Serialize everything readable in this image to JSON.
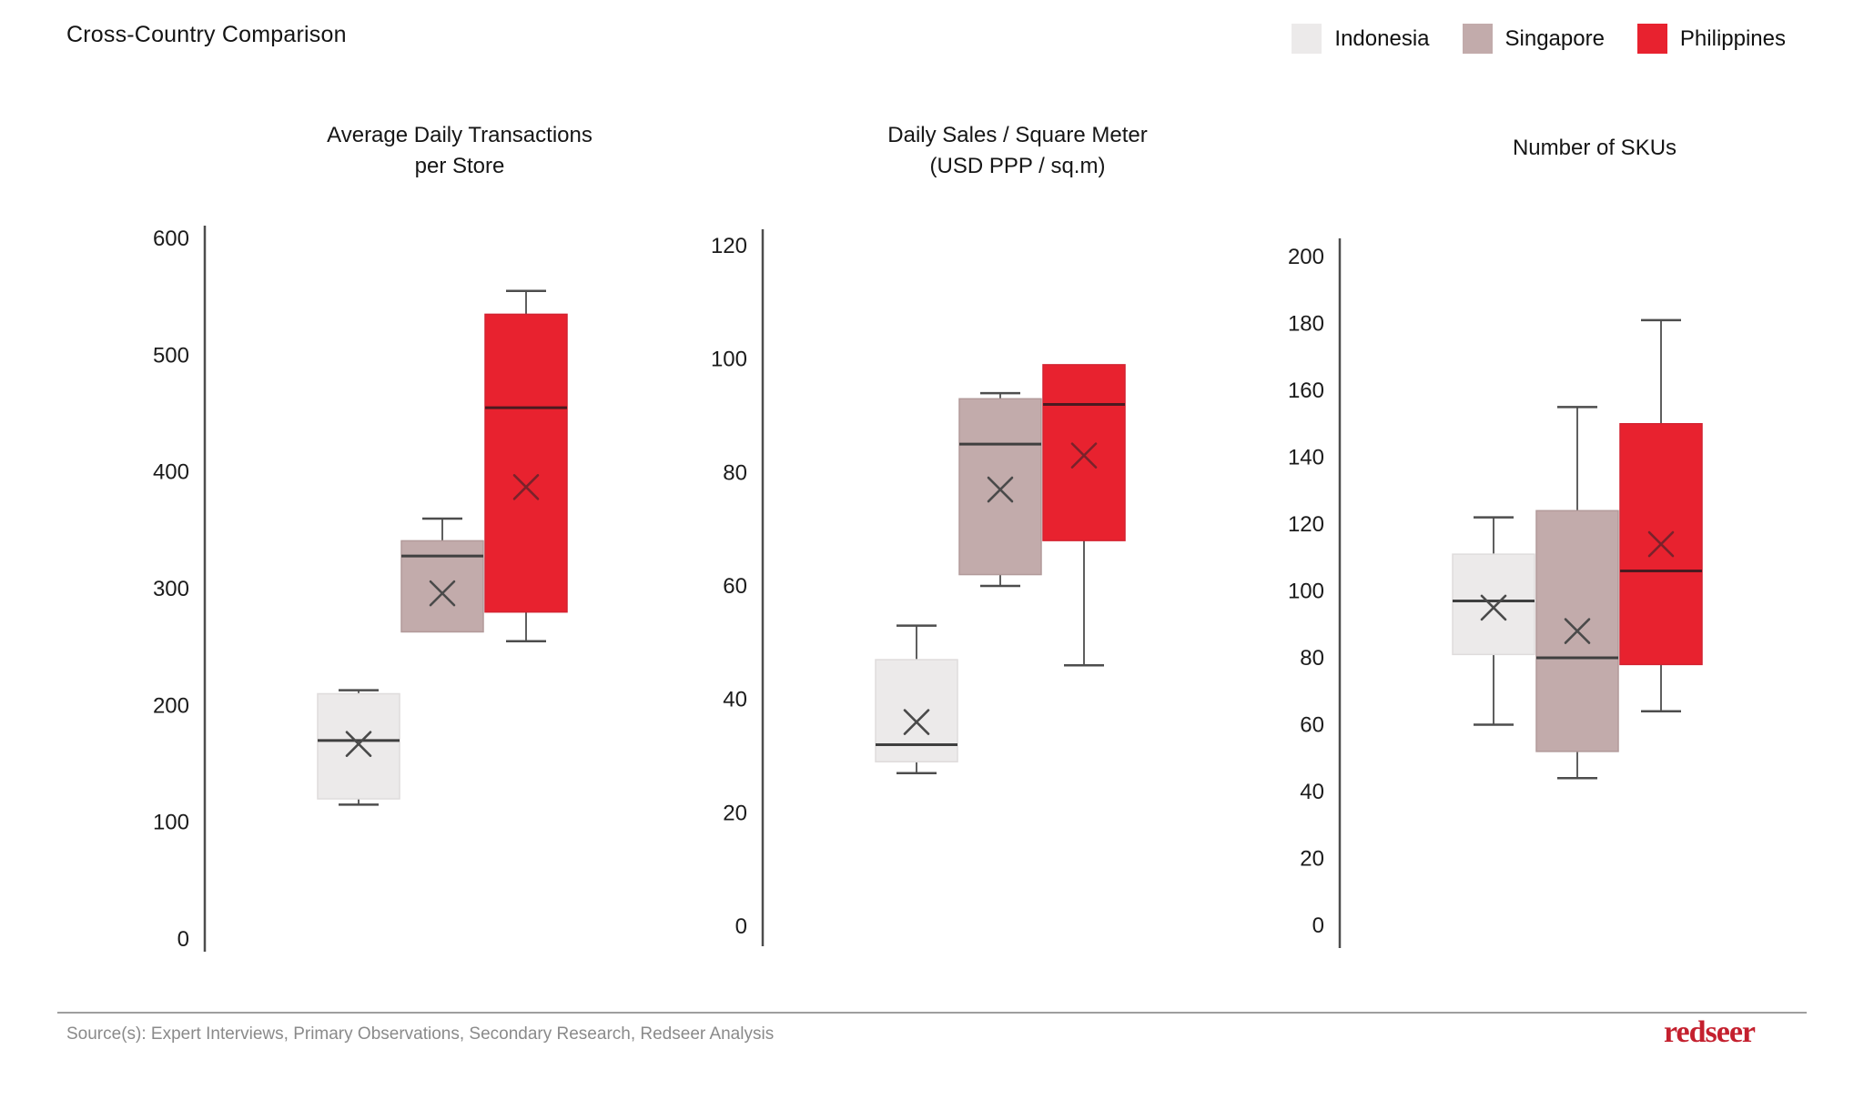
{
  "page": {
    "title": "Cross-Country Comparison"
  },
  "legend": {
    "items": [
      {
        "label": "Indonesia",
        "color": "#ECEAEA"
      },
      {
        "label": "Singapore",
        "color": "#C2ABAB"
      },
      {
        "label": "Philippines",
        "color": "#E8222F"
      }
    ]
  },
  "colors": {
    "axis": "#4d4d4d",
    "whisker": "#4d4d4d",
    "series": {
      "Indonesia": {
        "fill": "#ECEAEA",
        "border": "#DFDCDC",
        "median": "#3F3F3F",
        "marker": "#4A4A4A"
      },
      "Singapore": {
        "fill": "#C2ABAB",
        "border": "#B29A9A",
        "median": "#3F3F3F",
        "marker": "#4A4A4A"
      },
      "Philippines": {
        "fill": "#E8222F",
        "border": "#D42230",
        "median": "#4A1A20",
        "marker": "#7A222B"
      }
    }
  },
  "chart_data": [
    {
      "type": "boxplot",
      "title_lines": [
        "Average Daily Transactions",
        "per Store"
      ],
      "ylim": [
        0,
        600
      ],
      "ytick_step": 100,
      "grid": false,
      "series": [
        {
          "name": "Indonesia",
          "min": 115,
          "q1": 120,
          "median": 170,
          "mean": 167,
          "q3": 210,
          "max": 213
        },
        {
          "name": "Singapore",
          "min": 263,
          "q1": 263,
          "median": 328,
          "mean": 296,
          "q3": 341,
          "max": 360
        },
        {
          "name": "Philippines",
          "min": 255,
          "q1": 280,
          "median": 455,
          "mean": 387,
          "q3": 535,
          "max": 555
        }
      ]
    },
    {
      "type": "boxplot",
      "title_lines": [
        "Daily Sales / Square Meter",
        "(USD PPP / sq.m)"
      ],
      "ylim": [
        0,
        120
      ],
      "ytick_step": 20,
      "grid": false,
      "series": [
        {
          "name": "Indonesia",
          "min": 27,
          "q1": 29,
          "median": 32,
          "mean": 36,
          "q3": 47,
          "max": 53
        },
        {
          "name": "Singapore",
          "min": 60,
          "q1": 62,
          "median": 85,
          "mean": 77,
          "q3": 93,
          "max": 94
        },
        {
          "name": "Philippines",
          "min": 46,
          "q1": 68,
          "median": 92,
          "mean": 83,
          "q3": 99,
          "max": 99
        }
      ]
    },
    {
      "type": "boxplot",
      "title_lines": [
        "Number of SKUs"
      ],
      "ylim": [
        0,
        200
      ],
      "ytick_step": 20,
      "grid": false,
      "series": [
        {
          "name": "Indonesia",
          "min": 60,
          "q1": 81,
          "median": 97,
          "mean": 95,
          "q3": 111,
          "max": 122
        },
        {
          "name": "Singapore",
          "min": 44,
          "q1": 52,
          "median": 80,
          "mean": 88,
          "q3": 124,
          "max": 155
        },
        {
          "name": "Philippines",
          "min": 64,
          "q1": 78,
          "median": 106,
          "mean": 114,
          "q3": 150,
          "max": 181
        }
      ]
    }
  ],
  "footer": {
    "source": "Source(s): Expert Interviews, Primary Observations, Secondary Research, Redseer Analysis",
    "logo": "redseer"
  }
}
